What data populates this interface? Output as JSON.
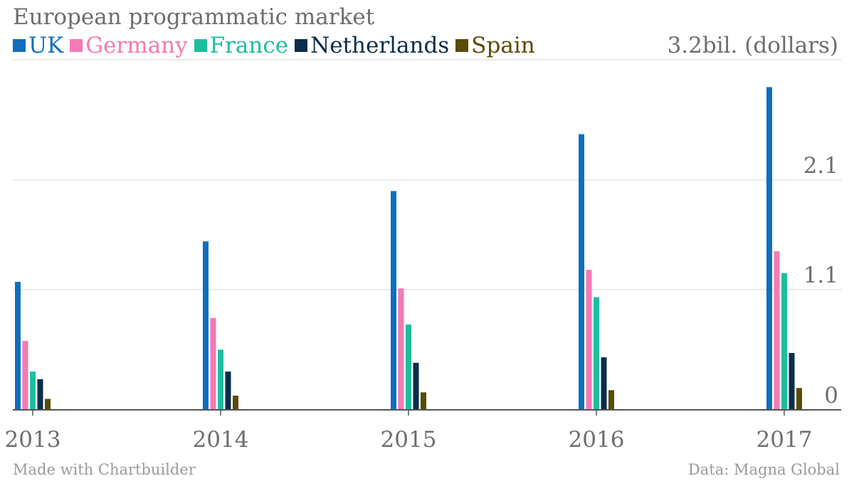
{
  "chart_data": {
    "type": "bar",
    "title": "European programmatic market",
    "unit_label": "3.2bil. (dollars)",
    "categories": [
      "2013",
      "2014",
      "2015",
      "2016",
      "2017"
    ],
    "series": [
      {
        "name": "UK",
        "color": "#0e6fbe",
        "values": [
          1.17,
          1.54,
          2.0,
          2.52,
          2.95
        ]
      },
      {
        "name": "Germany",
        "color": "#f57ab3",
        "values": [
          0.63,
          0.84,
          1.11,
          1.28,
          1.45
        ]
      },
      {
        "name": "France",
        "color": "#1ebd9e",
        "values": [
          0.35,
          0.55,
          0.78,
          1.03,
          1.25
        ]
      },
      {
        "name": "Netherlands",
        "color": "#0b2d4b",
        "values": [
          0.28,
          0.35,
          0.43,
          0.48,
          0.52
        ]
      },
      {
        "name": "Spain",
        "color": "#5a4b06",
        "values": [
          0.1,
          0.13,
          0.16,
          0.18,
          0.2
        ]
      }
    ],
    "yticks": [
      0,
      1.1,
      2.1
    ],
    "ytick_labels": [
      "0",
      "1.1",
      "2.1"
    ],
    "ylim": [
      0,
      3.2
    ],
    "grid": true
  },
  "footer": {
    "credit": "Made with Chartbuilder",
    "source": "Data: Magna Global"
  }
}
